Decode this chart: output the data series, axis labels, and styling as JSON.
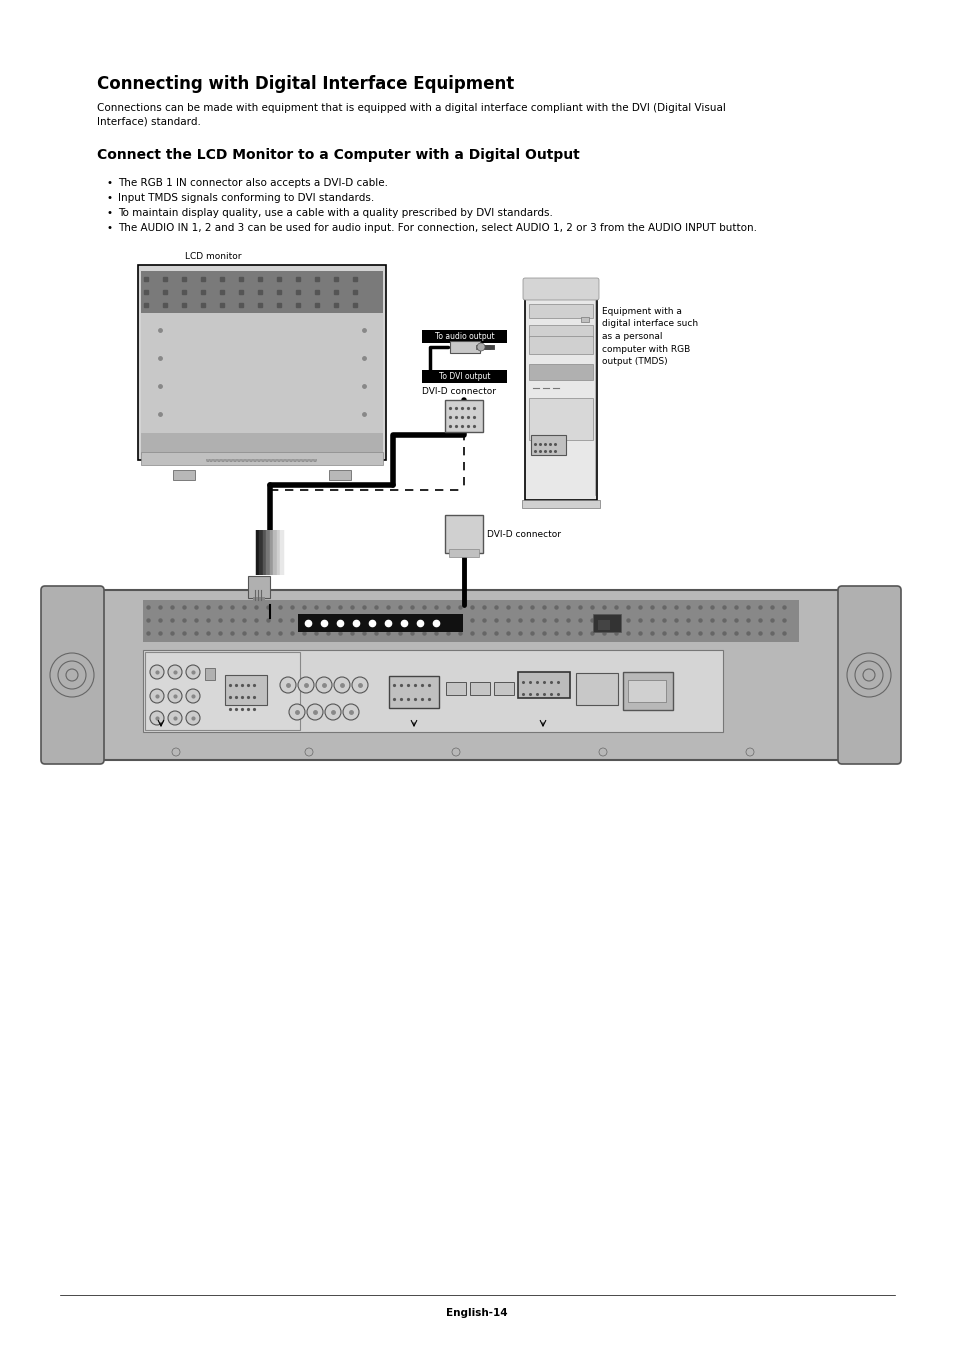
{
  "title": "Connecting with Digital Interface Equipment",
  "subtitle_line1": "Connections can be made with equipment that is equipped with a digital interface compliant with the DVI (Digital Visual",
  "subtitle_line2": "Interface) standard.",
  "section_title": "Connect the LCD Monitor to a Computer with a Digital Output",
  "bullets": [
    "The RGB 1 IN connector also accepts a DVI-D cable.",
    "Input TMDS signals conforming to DVI standards.",
    "To maintain display quality, use a cable with a quality prescribed by DVI standards.",
    "The AUDIO IN 1, 2 and 3 can be used for audio input. For connection, select AUDIO 1, 2 or 3 from the AUDIO INPUT button."
  ],
  "label_lcd": "LCD monitor",
  "label_audio_output": "To audio output",
  "label_dvi_output": "To DVI output",
  "label_dvi_connector1": "DVI-D connector",
  "label_dvi_connector2": "DVI-D connector",
  "label_equipment": "Equipment with a\ndigital interface such\nas a personal\ncomputer with RGB\noutput (TMDS)",
  "footer": "English-14",
  "bg_color": "#ffffff",
  "text_color": "#000000",
  "title_fontsize": 12,
  "section_fontsize": 10,
  "body_fontsize": 7.5,
  "small_fontsize": 6.5
}
